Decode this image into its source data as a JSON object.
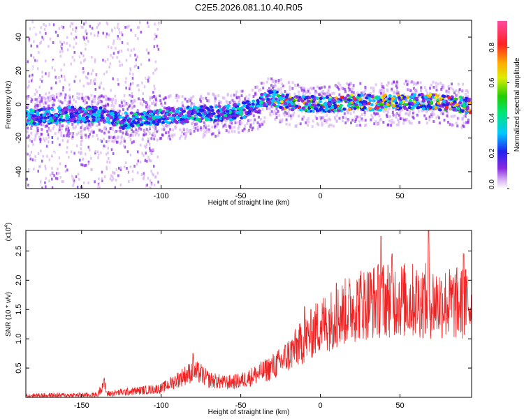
{
  "figure_title": "C2E5.2026.081.10.40.R05",
  "colors": {
    "snr_line": "#ee2222",
    "axis": "#000000",
    "background": "#ffffff"
  },
  "chart_data": [
    {
      "id": "spectrogram",
      "type": "heatmap",
      "title": "C2E5.2026.081.10.40.R05",
      "xlabel": "Height of straight line (km)",
      "ylabel": "Frequency (Hz)",
      "xlim": [
        -185,
        95
      ],
      "ylim": [
        -50,
        50
      ],
      "xticks": [
        -150,
        -100,
        -50,
        0,
        50
      ],
      "yticks": [
        -40,
        -20,
        0,
        20,
        40
      ],
      "colorbar": {
        "label": "Normalized spectral amplitude",
        "range": [
          0.0,
          0.95
        ],
        "ticks": [
          "0.0",
          "0.2",
          "0.4",
          "0.6",
          "0.8"
        ],
        "tick_values": [
          0.0,
          0.2,
          0.4,
          0.6,
          0.8
        ]
      },
      "ridge": {
        "description": "dominant spectral ridge frequency (Hz) vs height (km)",
        "x": [
          -185,
          -160,
          -140,
          -125,
          -110,
          -100,
          -80,
          -60,
          -50,
          -40,
          -35,
          -30,
          -20,
          0,
          20,
          40,
          60,
          80,
          95
        ],
        "y": [
          -8,
          -6,
          -6,
          -10,
          -8,
          -7,
          -6,
          -5,
          -4,
          -1,
          3,
          4,
          1,
          0,
          1,
          1,
          2,
          1,
          -1
        ]
      },
      "noise_zone": {
        "x_from": -185,
        "x_to": -110,
        "description": "scattered low-amplitude speckle across all frequencies"
      }
    },
    {
      "id": "snr",
      "type": "line",
      "xlabel": "Height of straight line (km)",
      "ylabel": "SNR (10 * v/v)",
      "ylabel_multiplier": "(x10",
      "ylabel_exponent": "4",
      "ylabel_close": ")",
      "xlim": [
        -185,
        95
      ],
      "ylim": [
        0,
        2.85
      ],
      "xticks": [
        -150,
        -100,
        -50,
        0,
        50
      ],
      "yticks": [
        0.5,
        1.0,
        1.5,
        2.0,
        2.5
      ],
      "series": [
        {
          "name": "SNR",
          "trend_x": [
            -185,
            -140,
            -136,
            -134,
            -120,
            -100,
            -90,
            -80,
            -75,
            -70,
            -60,
            -50,
            -35,
            -25,
            -15,
            -5,
            0,
            5,
            15,
            25,
            35,
            45,
            55,
            65,
            80,
            95
          ],
          "trend_y": [
            0.03,
            0.04,
            0.25,
            0.06,
            0.1,
            0.15,
            0.3,
            0.45,
            0.4,
            0.3,
            0.25,
            0.28,
            0.45,
            0.6,
            0.85,
            1.1,
            1.25,
            1.3,
            1.45,
            1.6,
            1.65,
            1.7,
            1.65,
            1.65,
            1.6,
            1.6
          ],
          "peaks_x": [
            -136,
            -80,
            -10,
            10,
            38,
            45,
            68,
            90
          ],
          "peaks_y": [
            0.3,
            0.75,
            1.55,
            1.95,
            2.75,
            2.45,
            2.85,
            2.45
          ]
        }
      ]
    }
  ]
}
